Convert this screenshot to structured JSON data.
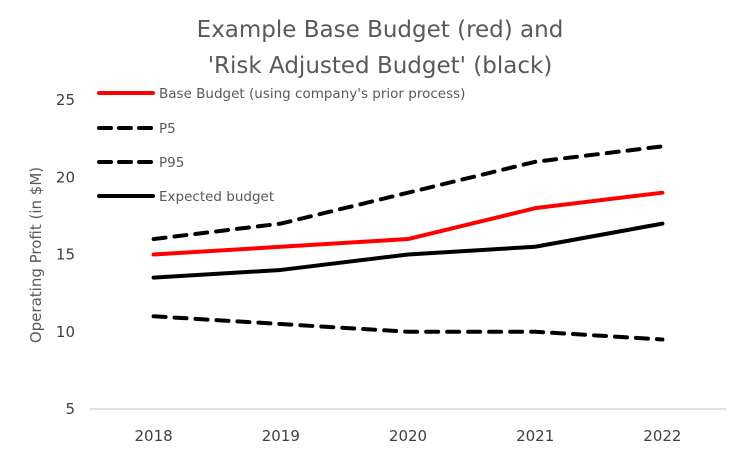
{
  "chart_data": {
    "type": "line",
    "title_lines": [
      "Example Base Budget (red) and",
      "'Risk Adjusted Budget' (black)"
    ],
    "xlabel": "",
    "ylabel": "Operating Profit (in $M)",
    "categories": [
      "2018",
      "2019",
      "2020",
      "2021",
      "2022"
    ],
    "ylim": [
      5,
      25
    ],
    "yticks": [
      5,
      10,
      15,
      20,
      25
    ],
    "grid": false,
    "legend_position": "top-left",
    "series": [
      {
        "name": "Base Budget (using company's prior process)",
        "color": "#ff0000",
        "style": "solid",
        "values": [
          15,
          15.5,
          16,
          18,
          19
        ]
      },
      {
        "name": "P5",
        "color": "#000000",
        "style": "dashed",
        "values": [
          11,
          10.5,
          10,
          10,
          9.5
        ]
      },
      {
        "name": "P95",
        "color": "#000000",
        "style": "dashed",
        "values": [
          16,
          17,
          19,
          21,
          22
        ]
      },
      {
        "name": "Expected budget",
        "color": "#000000",
        "style": "solid",
        "values": [
          13.5,
          14,
          15,
          15.5,
          17
        ]
      }
    ],
    "axis_color": "#d9d9d9"
  }
}
